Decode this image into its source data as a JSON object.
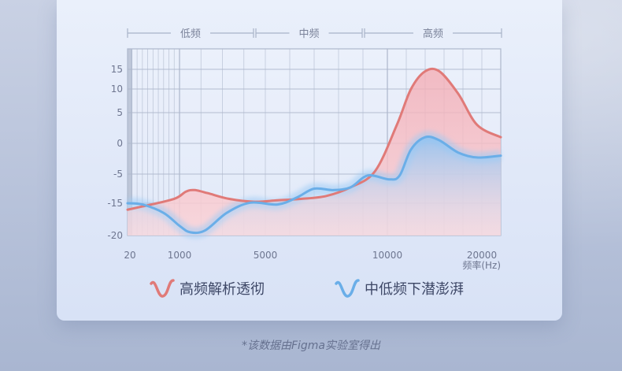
{
  "colors": {
    "high_series": "#e07a78",
    "high_fill": "#f6bfc4",
    "low_series": "#6aaee8",
    "low_fill": "#b7d8f7",
    "grid": "#aeb8cc",
    "axis_text": "#6e7690"
  },
  "legend": {
    "high": {
      "label": "高频解析透彻",
      "icon": "red-wave-icon"
    },
    "low": {
      "label": "中低频下潜澎湃",
      "icon": "blue-wave-icon"
    }
  },
  "footnote": "*该数据由Figma实验室得出",
  "chart_data": {
    "type": "area",
    "title": "",
    "bands": [
      "低频",
      "中频",
      "高频"
    ],
    "x_tick_labels": [
      "20",
      "1000",
      "5000",
      "10000",
      "20000"
    ],
    "x_unit_label": "频率(Hz)",
    "y_tick_labels": [
      "15",
      "10",
      "5",
      "0",
      "-5",
      "-15",
      "-20"
    ],
    "grid": true,
    "legend_position": "bottom",
    "series": [
      {
        "name": "高频解析透彻",
        "color": "#e07a78",
        "points": [
          [
            "20",
            -16
          ],
          [
            "300",
            -15.5
          ],
          [
            "900",
            -13.5
          ],
          [
            "1300",
            -11
          ],
          [
            "1700",
            -10.5
          ],
          [
            "2300",
            -11.5
          ],
          [
            "3300",
            -13.5
          ],
          [
            "4500",
            -14.5
          ],
          [
            "5500",
            -14
          ],
          [
            "6500",
            -13.5
          ],
          [
            "7500",
            -12.5
          ],
          [
            "8500",
            -9.5
          ],
          [
            "9500",
            -4.5
          ],
          [
            "11000",
            3
          ],
          [
            "12500",
            10
          ],
          [
            "14000",
            14.5
          ],
          [
            "15500",
            14.5
          ],
          [
            "17500",
            9
          ],
          [
            "19500",
            3
          ],
          [
            "21000",
            1
          ]
        ]
      },
      {
        "name": "中低频下潜澎湃",
        "color": "#6aaee8",
        "points": [
          [
            "20",
            -15
          ],
          [
            "300",
            -15.2
          ],
          [
            "700",
            -16.5
          ],
          [
            "1000",
            -18.5
          ],
          [
            "1500",
            -19.5
          ],
          [
            "2200",
            -19.2
          ],
          [
            "3200",
            -16.5
          ],
          [
            "4300",
            -14.8
          ],
          [
            "5500",
            -15.2
          ],
          [
            "6300",
            -13
          ],
          [
            "7000",
            -10
          ],
          [
            "7800",
            -10.5
          ],
          [
            "8500",
            -9.5
          ],
          [
            "9200",
            -5.5
          ],
          [
            "10200",
            -6.8
          ],
          [
            "11300",
            -5.5
          ],
          [
            "12500",
            -1
          ],
          [
            "14000",
            1
          ],
          [
            "15500",
            0.5
          ],
          [
            "17500",
            -1.5
          ],
          [
            "19500",
            -2.3
          ],
          [
            "21000",
            -2
          ]
        ]
      }
    ]
  }
}
